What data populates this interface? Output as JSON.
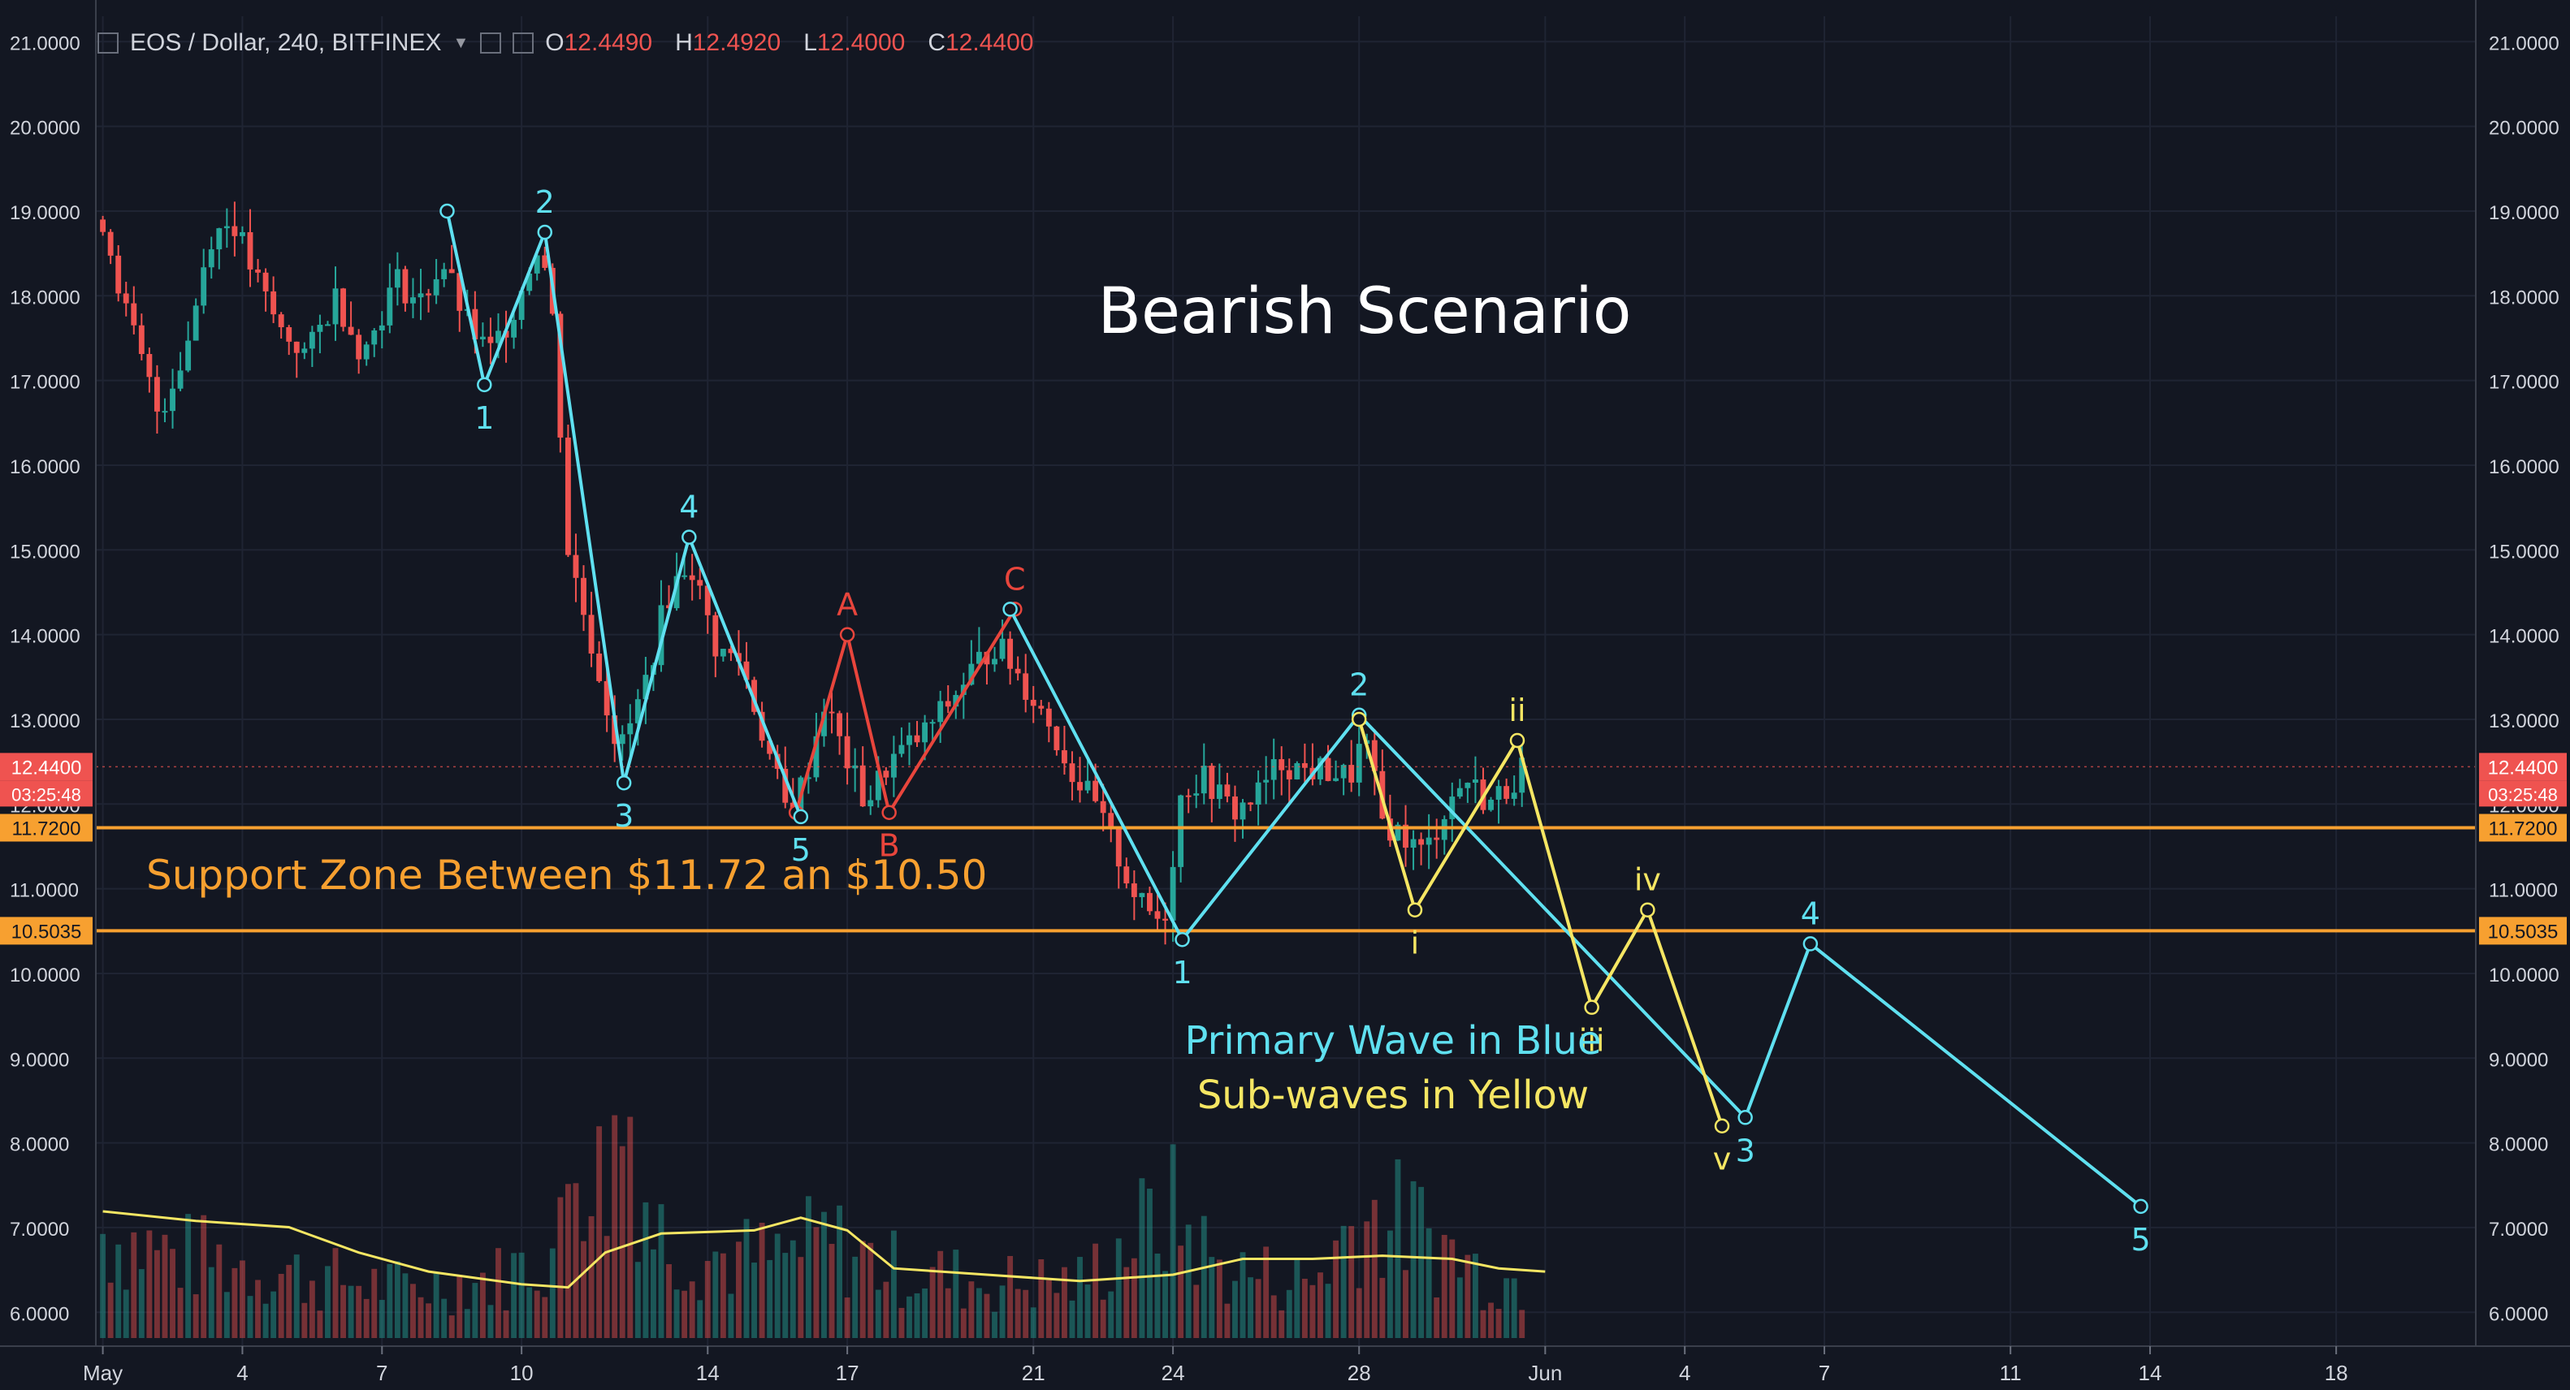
{
  "header": {
    "symbol": "EOS / Dollar, 240, BITFINEX",
    "open_label": "O",
    "open": "12.4490",
    "high_label": "H",
    "high": "12.4920",
    "low_label": "L",
    "low": "12.4000",
    "close_label": "C",
    "close": "12.4400"
  },
  "colors": {
    "background": "#131722",
    "up_candle": "#26a69a",
    "down_candle": "#ef5350",
    "primary_wave": "#5fe0f0",
    "sub_wave": "#f5e663",
    "correction_wave": "#e8453c",
    "support_line": "#f7a030",
    "volume_ma": "#f5e663"
  },
  "chart_data": {
    "type": "candlestick",
    "title": "Bearish Scenario",
    "annotations": {
      "support": "Support Zone Between $11.72 an $10.50",
      "legend_primary": "Primary Wave in Blue",
      "legend_sub": "Sub-waves in Yellow"
    },
    "y_ticks": [
      "21.0000",
      "20.0000",
      "19.0000",
      "18.0000",
      "17.0000",
      "16.0000",
      "15.0000",
      "14.0000",
      "13.0000",
      "12.0000",
      "11.0000",
      "10.0000",
      "9.0000",
      "8.0000",
      "7.0000",
      "6.0000"
    ],
    "ylim": [
      5.6,
      21.3
    ],
    "x_ticks": [
      {
        "label": "May",
        "day": 1
      },
      {
        "label": "4",
        "day": 4
      },
      {
        "label": "7",
        "day": 7
      },
      {
        "label": "10",
        "day": 10
      },
      {
        "label": "14",
        "day": 14
      },
      {
        "label": "17",
        "day": 17
      },
      {
        "label": "21",
        "day": 21
      },
      {
        "label": "24",
        "day": 24
      },
      {
        "label": "28",
        "day": 28
      },
      {
        "label": "Jun",
        "day": 32
      },
      {
        "label": "4",
        "day": 35
      },
      {
        "label": "7",
        "day": 38
      },
      {
        "label": "11",
        "day": 42
      },
      {
        "label": "14",
        "day": 45
      },
      {
        "label": "18",
        "day": 49
      }
    ],
    "xlim": [
      0.85,
      52.0
    ],
    "price_badges": [
      {
        "value": "12.4400",
        "price": 12.44,
        "color": "#ef5350",
        "sub": "03:25:48"
      },
      {
        "value": "11.7200",
        "price": 11.72,
        "color": "#f7a030"
      },
      {
        "value": "10.5035",
        "price": 10.5035,
        "color": "#f7a030"
      }
    ],
    "support_levels": [
      11.72,
      10.5035
    ],
    "candle_anchors": [
      [
        1.0,
        18.9
      ],
      [
        1.5,
        17.8
      ],
      [
        2.2,
        16.6
      ],
      [
        2.8,
        17.4
      ],
      [
        3.3,
        18.7
      ],
      [
        3.8,
        18.9
      ],
      [
        4.2,
        18.3
      ],
      [
        4.8,
        17.6
      ],
      [
        5.4,
        17.3
      ],
      [
        6.0,
        18.0
      ],
      [
        6.6,
        17.3
      ],
      [
        7.3,
        18.2
      ],
      [
        7.8,
        17.9
      ],
      [
        8.3,
        18.4
      ],
      [
        8.8,
        17.7
      ],
      [
        9.3,
        17.3
      ],
      [
        9.8,
        17.8
      ],
      [
        10.4,
        18.7
      ],
      [
        10.7,
        17.6
      ],
      [
        11.0,
        15.0
      ],
      [
        11.5,
        13.9
      ],
      [
        12.1,
        12.6
      ],
      [
        12.6,
        13.3
      ],
      [
        13.1,
        14.4
      ],
      [
        13.6,
        14.9
      ],
      [
        14.2,
        13.8
      ],
      [
        14.7,
        13.7
      ],
      [
        15.2,
        12.8
      ],
      [
        15.7,
        11.9
      ],
      [
        16.1,
        12.3
      ],
      [
        16.5,
        13.2
      ],
      [
        17.0,
        12.5
      ],
      [
        17.4,
        12.0
      ],
      [
        17.9,
        12.5
      ],
      [
        18.6,
        12.8
      ],
      [
        19.2,
        13.2
      ],
      [
        19.7,
        13.6
      ],
      [
        20.2,
        13.9
      ],
      [
        20.7,
        13.5
      ],
      [
        21.3,
        13.0
      ],
      [
        21.8,
        12.4
      ],
      [
        22.3,
        12.0
      ],
      [
        22.8,
        11.4
      ],
      [
        23.3,
        10.8
      ],
      [
        23.8,
        10.6
      ],
      [
        24.2,
        12.2
      ],
      [
        24.7,
        12.3
      ],
      [
        25.3,
        11.9
      ],
      [
        25.8,
        12.1
      ],
      [
        26.3,
        12.5
      ],
      [
        26.8,
        12.4
      ],
      [
        27.3,
        12.4
      ],
      [
        27.8,
        12.3
      ],
      [
        28.1,
        12.8
      ],
      [
        28.5,
        11.8
      ],
      [
        29.0,
        11.6
      ],
      [
        29.4,
        11.4
      ],
      [
        29.9,
        12.0
      ],
      [
        30.3,
        12.3
      ],
      [
        30.8,
        12.0
      ],
      [
        31.2,
        12.2
      ],
      [
        31.5,
        12.44
      ]
    ],
    "volume_anchors": [
      [
        1.0,
        0.38
      ],
      [
        2.5,
        0.3
      ],
      [
        3.5,
        0.28
      ],
      [
        5.5,
        0.22
      ],
      [
        7.5,
        0.18
      ],
      [
        9.5,
        0.22
      ],
      [
        10.8,
        0.32
      ],
      [
        11.2,
        0.8
      ],
      [
        11.7,
        0.55
      ],
      [
        12.3,
        0.85
      ],
      [
        12.8,
        0.4
      ],
      [
        14.0,
        0.3
      ],
      [
        15.5,
        0.28
      ],
      [
        16.5,
        0.35
      ],
      [
        18.0,
        0.25
      ],
      [
        20.0,
        0.2
      ],
      [
        22.0,
        0.2
      ],
      [
        23.0,
        0.35
      ],
      [
        24.0,
        0.45
      ],
      [
        25.0,
        0.25
      ],
      [
        27.0,
        0.2
      ],
      [
        28.0,
        0.45
      ],
      [
        29.2,
        0.4
      ],
      [
        30.5,
        0.25
      ],
      [
        31.5,
        0.2
      ]
    ],
    "volume_ma": [
      [
        1.0,
        0.4
      ],
      [
        3.0,
        0.37
      ],
      [
        5.0,
        0.35
      ],
      [
        6.5,
        0.27
      ],
      [
        8.0,
        0.21
      ],
      [
        10.0,
        0.17
      ],
      [
        11.0,
        0.16
      ],
      [
        11.8,
        0.27
      ],
      [
        13.0,
        0.33
      ],
      [
        15.0,
        0.34
      ],
      [
        16.0,
        0.38
      ],
      [
        17.0,
        0.34
      ],
      [
        18.0,
        0.22
      ],
      [
        20.0,
        0.2
      ],
      [
        22.0,
        0.18
      ],
      [
        24.0,
        0.2
      ],
      [
        25.5,
        0.25
      ],
      [
        27.0,
        0.25
      ],
      [
        28.5,
        0.26
      ],
      [
        30.0,
        0.25
      ],
      [
        31.0,
        0.22
      ],
      [
        32.0,
        0.21
      ]
    ],
    "primary_wave": {
      "name": "Primary Wave in Blue",
      "points": [
        {
          "day": 8.4,
          "price": 19.0,
          "label": ""
        },
        {
          "day": 9.2,
          "price": 16.95,
          "label": "1"
        },
        {
          "day": 10.5,
          "price": 18.75,
          "label": "2"
        },
        {
          "day": 12.2,
          "price": 12.25,
          "label": "3"
        },
        {
          "day": 13.6,
          "price": 15.15,
          "label": "4"
        },
        {
          "day": 16.0,
          "price": 11.85,
          "label": "5"
        }
      ]
    },
    "primary_wave_2": {
      "points": [
        {
          "day": 20.5,
          "price": 14.3,
          "label": ""
        },
        {
          "day": 24.2,
          "price": 10.4,
          "label": "1"
        },
        {
          "day": 28.0,
          "price": 13.05,
          "label": "2"
        },
        {
          "day": 36.3,
          "price": 8.3,
          "label": "3"
        },
        {
          "day": 37.7,
          "price": 10.35,
          "label": "4"
        },
        {
          "day": 44.8,
          "price": 7.25,
          "label": "5"
        }
      ]
    },
    "correction_wave": {
      "points": [
        {
          "day": 15.9,
          "price": 11.9,
          "label": ""
        },
        {
          "day": 17.0,
          "price": 14.0,
          "label": "A"
        },
        {
          "day": 17.9,
          "price": 11.9,
          "label": "B"
        },
        {
          "day": 20.6,
          "price": 14.3,
          "label": "C"
        }
      ]
    },
    "sub_wave": {
      "name": "Sub-waves in Yellow",
      "points": [
        {
          "day": 28.0,
          "price": 13.0,
          "label": ""
        },
        {
          "day": 29.2,
          "price": 10.75,
          "label": "i"
        },
        {
          "day": 31.4,
          "price": 12.75,
          "label": "ii"
        },
        {
          "day": 33.0,
          "price": 9.6,
          "label": "iii"
        },
        {
          "day": 34.2,
          "price": 10.75,
          "label": "iv"
        },
        {
          "day": 35.8,
          "price": 8.2,
          "label": "v"
        }
      ]
    }
  }
}
